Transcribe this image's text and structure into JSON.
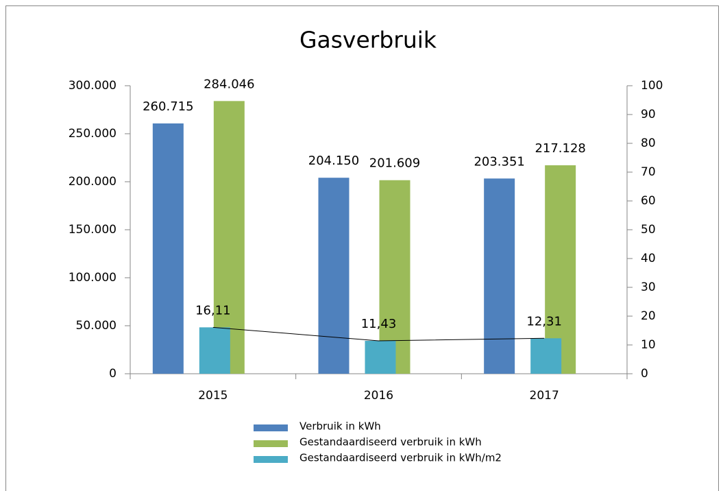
{
  "chart_data": {
    "type": "bar",
    "title": "Gasverbruik",
    "categories": [
      "2015",
      "2016",
      "2017"
    ],
    "series": [
      {
        "name": "Verbruik in kWh",
        "color": "#4f81bd",
        "values": [
          260715,
          204150,
          203351
        ],
        "value_labels": [
          "260.715",
          "204.150",
          "203.351"
        ]
      },
      {
        "name": "Gestandaardiseerd verbruik in kWh",
        "color": "#9bbb59",
        "values": [
          284046,
          201609,
          217128
        ],
        "value_labels": [
          "284.046",
          "201.609",
          "217.128"
        ]
      },
      {
        "name": "Gestandaardiseerd verbruik in kWh/m2",
        "color": "#4bacc6",
        "line_color": "#000000",
        "axis": "y2",
        "values": [
          16.11,
          11.43,
          12.31
        ],
        "value_labels": [
          "16,11",
          "11,43",
          "12,31"
        ]
      }
    ],
    "ylim": [
      0,
      300000
    ],
    "yticks": [
      0,
      {
        "value": 50000,
        "label": "50.000"
      },
      {
        "value": 100000,
        "label": "100.000"
      },
      {
        "value": 150000,
        "label": "150.000"
      },
      {
        "value": 200000,
        "label": "200.000"
      },
      {
        "value": 250000,
        "label": "250.000"
      },
      {
        "value": 300000,
        "label": "300.000"
      }
    ],
    "y2lim": [
      0,
      100
    ],
    "y2ticks": [
      0,
      10,
      20,
      30,
      40,
      50,
      60,
      70,
      80,
      90,
      100
    ],
    "legend": "bottom"
  }
}
